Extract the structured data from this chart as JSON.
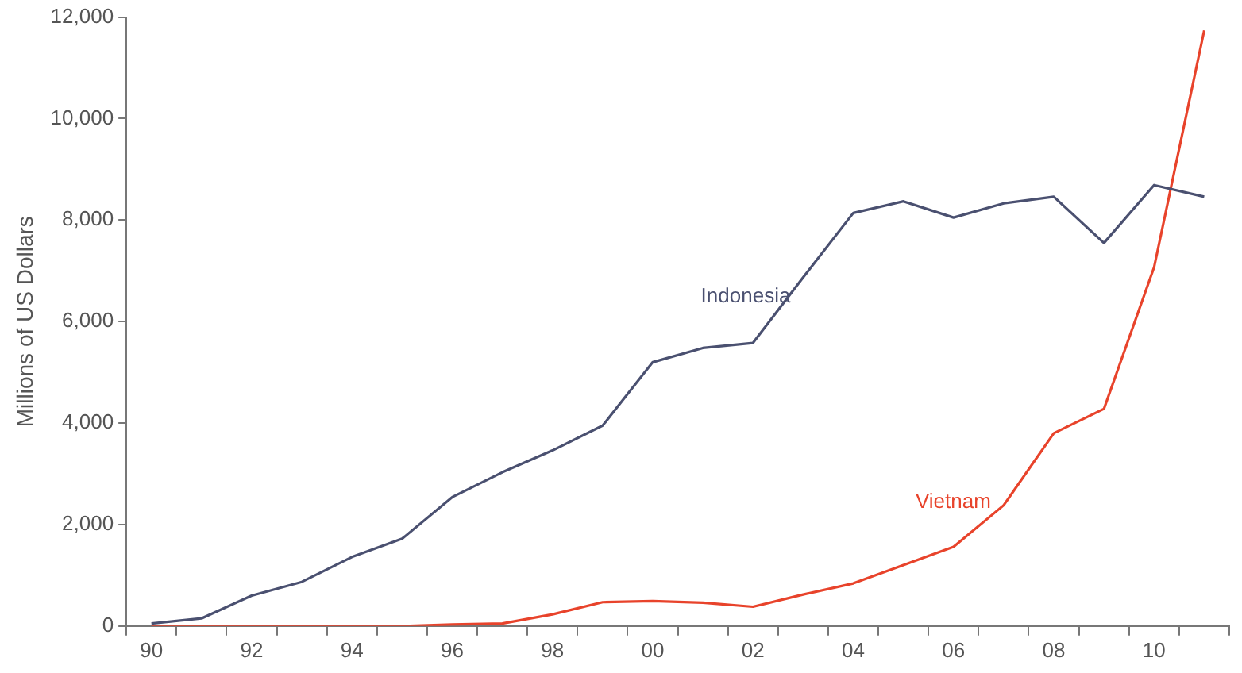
{
  "chart_data": {
    "type": "line",
    "ylabel": "Millions of US Dollars",
    "categories": [
      "90",
      null,
      "92",
      null,
      "94",
      null,
      "96",
      null,
      "98",
      null,
      "00",
      null,
      "02",
      null,
      "04",
      null,
      "06",
      null,
      "08",
      null,
      "10",
      null
    ],
    "series": [
      {
        "name": "Indonesia",
        "color": "#4a5070",
        "values": [
          50,
          150,
          600,
          870,
          1360,
          1720,
          2540,
          3030,
          3460,
          3950,
          5200,
          5480,
          5580,
          6870,
          8140,
          8370,
          8050,
          8330,
          8460,
          7550,
          8690,
          8460
        ]
      },
      {
        "name": "Vietnam",
        "color": "#e8432b",
        "values": [
          0,
          0,
          0,
          0,
          0,
          0,
          30,
          50,
          230,
          470,
          490,
          460,
          380,
          620,
          840,
          1200,
          1560,
          2380,
          3800,
          4280,
          7070,
          11740
        ]
      }
    ],
    "ylim": [
      0,
      12000
    ],
    "yticks": [
      {
        "value": 0,
        "label": "0"
      },
      {
        "value": 2000,
        "label": "2,000"
      },
      {
        "value": 4000,
        "label": "4,000"
      },
      {
        "value": 6000,
        "label": "6,000"
      },
      {
        "value": 8000,
        "label": "8,000"
      },
      {
        "value": 10000,
        "label": "10,000"
      },
      {
        "value": 12000,
        "label": "12,000"
      }
    ],
    "grid": false,
    "legend": false,
    "marker": "none",
    "line_style": "solid"
  }
}
